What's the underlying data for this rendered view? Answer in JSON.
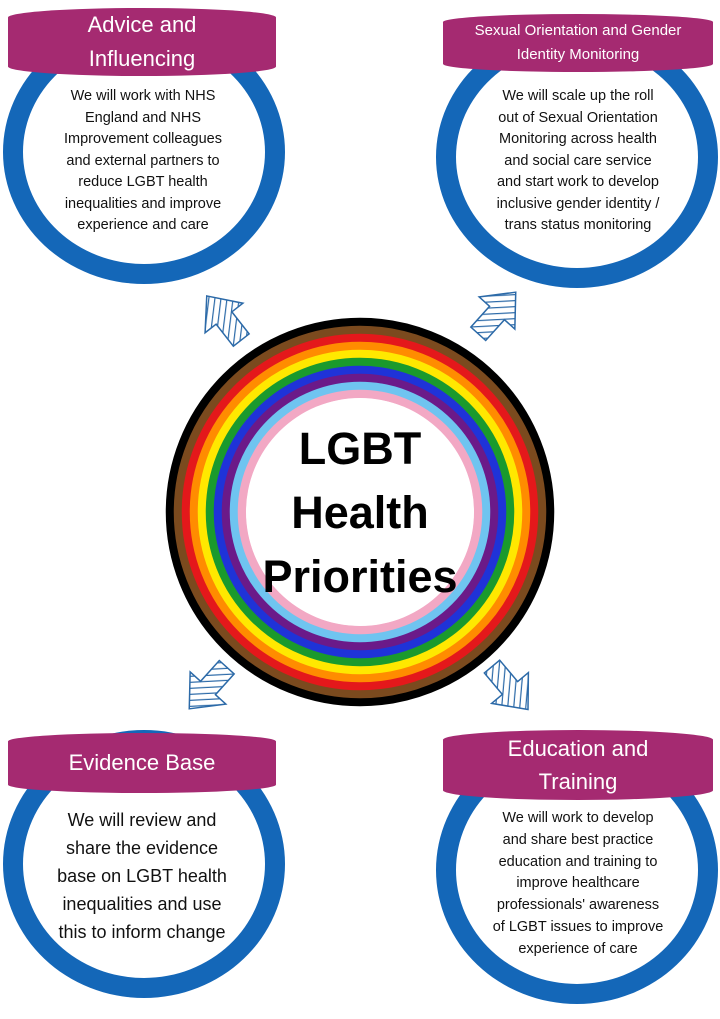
{
  "center": {
    "line1": "LGBT",
    "line2": "Health",
    "line3": "Priorities"
  },
  "rainbow_colors": [
    "#000000",
    "#7b4a1e",
    "#e4181b",
    "#ff8c00",
    "#ffe800",
    "#1a9a2d",
    "#1f33d8",
    "#6b1a89",
    "#6fc4f0",
    "#f2a8c4"
  ],
  "ring_color": "#1467b8",
  "banner_color": "#a52a71",
  "arrow_color": "#2c6aa8",
  "cards": {
    "advice": {
      "title_line1": "Advice and",
      "title_line2": "Influencing",
      "lines": [
        "We will work with NHS",
        "England and NHS",
        "Improvement colleagues",
        "and external partners to",
        "reduce LGBT health",
        "inequalities and improve",
        "experience and care"
      ]
    },
    "monitoring": {
      "title_line1": "Sexual Orientation and Gender",
      "title_line2": "Identity Monitoring",
      "lines": [
        "We will scale up the roll",
        "out of Sexual Orientation",
        "Monitoring across health",
        "and social care service",
        "and start work to develop",
        "inclusive gender identity /",
        "trans status monitoring"
      ]
    },
    "evidence": {
      "title_line1": "Evidence Base",
      "lines": [
        "We will review and",
        "share the evidence",
        "base on LGBT health",
        "inequalities and use",
        "this to inform change"
      ]
    },
    "education": {
      "title_line1": "Education and",
      "title_line2": "Training",
      "lines": [
        "We will work to develop",
        "and share best practice",
        "education and training to",
        "improve healthcare",
        "professionals' awareness",
        "of LGBT issues to improve",
        "experience of care"
      ]
    }
  }
}
